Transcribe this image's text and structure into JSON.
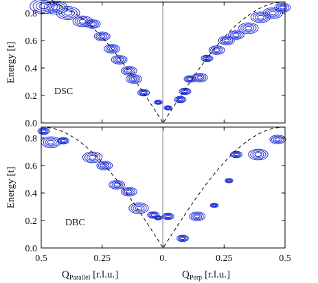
{
  "colors": {
    "contour": "#1f2fd6",
    "dispersion": "#000000",
    "frame": "#000000",
    "divider": "#808080"
  },
  "chart_data": [
    {
      "type": "contour",
      "panel_label": "DSC",
      "ylabel": "Energy [t]",
      "xlim": [
        -0.5,
        0.5
      ],
      "ylim": [
        0,
        0.88
      ],
      "yticks": [
        "0.0",
        "0.2",
        "0.4",
        "0.6",
        "0.8"
      ],
      "dispersion_line": "dashed",
      "contour_centers": [
        {
          "q": -0.49,
          "e": 0.85,
          "spread": 0.035
        },
        {
          "q": -0.44,
          "e": 0.84,
          "spread": 0.03
        },
        {
          "q": -0.39,
          "e": 0.8,
          "spread": 0.03
        },
        {
          "q": -0.33,
          "e": 0.74,
          "spread": 0.025
        },
        {
          "q": -0.29,
          "e": 0.72,
          "spread": 0.02
        },
        {
          "q": -0.25,
          "e": 0.63,
          "spread": 0.02
        },
        {
          "q": -0.21,
          "e": 0.54,
          "spread": 0.02
        },
        {
          "q": -0.18,
          "e": 0.46,
          "spread": 0.02
        },
        {
          "q": -0.14,
          "e": 0.38,
          "spread": 0.02
        },
        {
          "q": -0.12,
          "e": 0.32,
          "spread": 0.02
        },
        {
          "q": -0.08,
          "e": 0.22,
          "spread": 0.015
        },
        {
          "q": -0.02,
          "e": 0.15,
          "spread": 0.01
        },
        {
          "q": 0.02,
          "e": 0.11,
          "spread": 0.01
        },
        {
          "q": 0.07,
          "e": 0.17,
          "spread": 0.015
        },
        {
          "q": 0.09,
          "e": 0.23,
          "spread": 0.015
        },
        {
          "q": 0.11,
          "e": 0.32,
          "spread": 0.015
        },
        {
          "q": 0.15,
          "e": 0.33,
          "spread": 0.02
        },
        {
          "q": 0.18,
          "e": 0.47,
          "spread": 0.015
        },
        {
          "q": 0.22,
          "e": 0.53,
          "spread": 0.02
        },
        {
          "q": 0.26,
          "e": 0.6,
          "spread": 0.02
        },
        {
          "q": 0.3,
          "e": 0.64,
          "spread": 0.02
        },
        {
          "q": 0.35,
          "e": 0.69,
          "spread": 0.025
        },
        {
          "q": 0.4,
          "e": 0.77,
          "spread": 0.025
        },
        {
          "q": 0.45,
          "e": 0.8,
          "spread": 0.025
        },
        {
          "q": 0.49,
          "e": 0.84,
          "spread": 0.02
        }
      ]
    },
    {
      "type": "contour",
      "panel_label": "DBC",
      "ylabel": "Energy [t]",
      "xlim": [
        -0.5,
        0.5
      ],
      "ylim": [
        0,
        0.88
      ],
      "yticks": [
        "0.0",
        "0.2",
        "0.4",
        "0.6",
        "0.8"
      ],
      "xticks": [
        "0.5",
        "0.25",
        "0.",
        "0.25",
        "0.5"
      ],
      "xlabel_left": "Q",
      "xlabel_left_sub": "Parallel",
      "xlabel_left_unit": " [r.l.u.]",
      "xlabel_right": "Q",
      "xlabel_right_sub": "Perp",
      "xlabel_right_unit": " [r.l.u.]",
      "dispersion_line": "dashed",
      "contour_centers": [
        {
          "q": -0.49,
          "e": 0.85,
          "spread": 0.015
        },
        {
          "q": -0.46,
          "e": 0.77,
          "spread": 0.025
        },
        {
          "q": -0.41,
          "e": 0.78,
          "spread": 0.015
        },
        {
          "q": -0.29,
          "e": 0.66,
          "spread": 0.025
        },
        {
          "q": -0.24,
          "e": 0.6,
          "spread": 0.02
        },
        {
          "q": -0.19,
          "e": 0.46,
          "spread": 0.02
        },
        {
          "q": -0.14,
          "e": 0.41,
          "spread": 0.02
        },
        {
          "q": -0.1,
          "e": 0.29,
          "spread": 0.025
        },
        {
          "q": -0.04,
          "e": 0.24,
          "spread": 0.015
        },
        {
          "q": -0.02,
          "e": 0.22,
          "spread": 0.01
        },
        {
          "q": 0.02,
          "e": 0.23,
          "spread": 0.015
        },
        {
          "q": 0.08,
          "e": 0.07,
          "spread": 0.015
        },
        {
          "q": 0.14,
          "e": 0.23,
          "spread": 0.02
        },
        {
          "q": 0.21,
          "e": 0.31,
          "spread": 0.01
        },
        {
          "q": 0.27,
          "e": 0.49,
          "spread": 0.01
        },
        {
          "q": 0.3,
          "e": 0.68,
          "spread": 0.015
        },
        {
          "q": 0.39,
          "e": 0.68,
          "spread": 0.025
        },
        {
          "q": 0.47,
          "e": 0.79,
          "spread": 0.02
        }
      ]
    }
  ]
}
